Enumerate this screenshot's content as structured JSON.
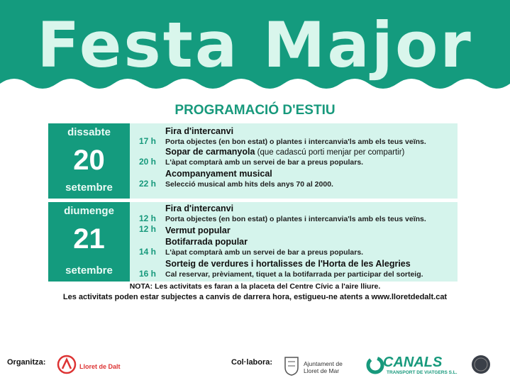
{
  "header": {
    "title": "Festa Major",
    "subtitle": "PROGRAMACIÓ D'ESTIU"
  },
  "days": [
    {
      "weekday": "dissabte",
      "day": "20",
      "month": "setembre",
      "events": [
        {
          "time": "17 h",
          "title": "Fira d'intercanvi",
          "description": "Porta objectes (en bon estat) o plantes i intercanvia'ls amb els teus veïns."
        },
        {
          "time": "20 h",
          "title": "Sopar de carmanyola",
          "title_note": "(que cadascú porti menjar per compartir)",
          "description": "L'àpat comptarà amb un servei de bar a preus populars."
        },
        {
          "time": "22 h",
          "title": "Acompanyament musical",
          "description": "Selecció musical amb hits dels anys 70 al 2000."
        }
      ]
    },
    {
      "weekday": "diumenge",
      "day": "21",
      "month": "setembre",
      "events": [
        {
          "time": "12 h",
          "title": "Fira d'intercanvi",
          "description": "Porta objectes (en bon estat) o plantes i intercanvia'ls amb els teus veïns."
        },
        {
          "time": "12 h",
          "title": "Vermut popular"
        },
        {
          "time": "14 h",
          "title": "Botifarrada popular",
          "description": "L'àpat comptarà amb un servei de bar a preus populars."
        },
        {
          "time": "16 h",
          "title": "Sorteig de verdures i hortalisses de l'Horta de les Alegries",
          "description": "Cal reservar, prèviament, tiquet a la botifarrada per participar del sorteig."
        }
      ]
    }
  ],
  "notes": [
    "NOTA: Les activitats es faran a la placeta del Centre Cívic a l'aire lliure.",
    "Les activitats poden estar subjectes a canvis de darrera hora, estigueu-ne atents a www.lloretdedalt.cat"
  ],
  "footer": {
    "organizer_label": "Organitza:",
    "organizer_logo": "Lloret de Dalt",
    "collaborator_label": "Col·labora:",
    "collaborators": [
      "Ajuntament de Lloret de Mar",
      "CANALS",
      "TRANSPORT DE VIATGERS S.L."
    ]
  }
}
